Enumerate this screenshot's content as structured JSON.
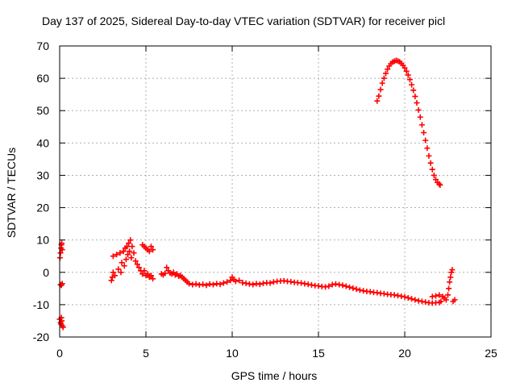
{
  "chart_data": {
    "type": "scatter",
    "title": "Day 137 of 2025, Sidereal Day-to-day VTEC variation (SDTVAR) for receiver picl",
    "xlabel": "GPS time / hours",
    "ylabel": "SDTVAR / TECUs",
    "xlim": [
      0,
      25
    ],
    "ylim": [
      -20,
      70
    ],
    "xticks": [
      "0",
      "5",
      "10",
      "15",
      "20",
      "25"
    ],
    "yticks": [
      "-20",
      "-10",
      "0",
      "10",
      "20",
      "30",
      "40",
      "50",
      "60",
      "70"
    ],
    "grid": true,
    "marker": "+",
    "color": "#ff0000",
    "series": [
      {
        "name": "SDTVAR",
        "points": [
          [
            0.02,
            4.5
          ],
          [
            0.05,
            6.0
          ],
          [
            0.08,
            7.5
          ],
          [
            0.1,
            8.5
          ],
          [
            0.12,
            9.0
          ],
          [
            0.15,
            7.0
          ],
          [
            0.05,
            -3.8
          ],
          [
            0.1,
            -4.0
          ],
          [
            0.15,
            -3.5
          ],
          [
            0.0,
            -14.5
          ],
          [
            0.05,
            -15.5
          ],
          [
            0.08,
            -16.0
          ],
          [
            0.12,
            -15.0
          ],
          [
            0.15,
            -16.5
          ],
          [
            0.2,
            -17.0
          ],
          [
            0.1,
            -14.0
          ],
          [
            3.0,
            -2.5
          ],
          [
            3.05,
            -1.5
          ],
          [
            3.1,
            0.0
          ],
          [
            3.1,
            5.0
          ],
          [
            3.2,
            -1.0
          ],
          [
            3.3,
            5.5
          ],
          [
            3.4,
            1.0
          ],
          [
            3.5,
            6.0
          ],
          [
            3.55,
            0.0
          ],
          [
            3.6,
            3.0
          ],
          [
            3.7,
            6.5
          ],
          [
            3.75,
            2.0
          ],
          [
            3.8,
            7.5
          ],
          [
            3.85,
            4.0
          ],
          [
            3.9,
            8.0
          ],
          [
            3.95,
            5.5
          ],
          [
            4.0,
            9.0
          ],
          [
            4.05,
            6.5
          ],
          [
            4.1,
            10.0
          ],
          [
            4.15,
            4.5
          ],
          [
            4.2,
            8.0
          ],
          [
            4.3,
            6.0
          ],
          [
            4.4,
            3.5
          ],
          [
            4.5,
            2.5
          ],
          [
            4.6,
            1.5
          ],
          [
            4.7,
            0.5
          ],
          [
            4.8,
            -0.5
          ],
          [
            4.9,
            0.5
          ],
          [
            5.0,
            -1.0
          ],
          [
            5.1,
            -0.5
          ],
          [
            5.2,
            -1.5
          ],
          [
            5.3,
            -1.0
          ],
          [
            5.4,
            -2.0
          ],
          [
            4.8,
            8.5
          ],
          [
            4.9,
            8.0
          ],
          [
            5.0,
            7.5
          ],
          [
            5.1,
            7.0
          ],
          [
            5.2,
            6.5
          ],
          [
            5.3,
            8.0
          ],
          [
            5.4,
            7.0
          ],
          [
            5.9,
            -0.5
          ],
          [
            6.0,
            -0.8
          ],
          [
            6.1,
            -0.3
          ],
          [
            6.2,
            1.5
          ],
          [
            6.3,
            0.5
          ],
          [
            6.4,
            -0.2
          ],
          [
            6.5,
            -0.5
          ],
          [
            6.6,
            0.0
          ],
          [
            6.7,
            -0.8
          ],
          [
            6.8,
            -0.5
          ],
          [
            6.9,
            -1.2
          ],
          [
            7.0,
            -1.0
          ],
          [
            7.1,
            -1.5
          ],
          [
            7.2,
            -2.0
          ],
          [
            7.3,
            -2.5
          ],
          [
            7.4,
            -3.0
          ],
          [
            7.5,
            -3.5
          ],
          [
            7.7,
            -3.8
          ],
          [
            7.9,
            -3.6
          ],
          [
            8.1,
            -3.9
          ],
          [
            8.3,
            -3.7
          ],
          [
            8.5,
            -4.0
          ],
          [
            8.7,
            -3.6
          ],
          [
            8.9,
            -3.8
          ],
          [
            9.1,
            -3.5
          ],
          [
            9.3,
            -3.7
          ],
          [
            9.5,
            -3.3
          ],
          [
            9.7,
            -3.0
          ],
          [
            9.9,
            -2.5
          ],
          [
            10.0,
            -1.5
          ],
          [
            10.1,
            -2.2
          ],
          [
            10.2,
            -2.8
          ],
          [
            10.4,
            -2.5
          ],
          [
            10.6,
            -3.2
          ],
          [
            10.8,
            -3.4
          ],
          [
            11.0,
            -3.6
          ],
          [
            11.2,
            -3.8
          ],
          [
            11.4,
            -3.5
          ],
          [
            11.6,
            -3.7
          ],
          [
            11.8,
            -3.4
          ],
          [
            12.0,
            -3.2
          ],
          [
            12.2,
            -3.3
          ],
          [
            12.4,
            -3.0
          ],
          [
            12.6,
            -2.8
          ],
          [
            12.8,
            -2.7
          ],
          [
            13.0,
            -2.6
          ],
          [
            13.2,
            -2.8
          ],
          [
            13.4,
            -2.9
          ],
          [
            13.6,
            -3.1
          ],
          [
            13.8,
            -3.2
          ],
          [
            14.0,
            -3.3
          ],
          [
            14.2,
            -3.5
          ],
          [
            14.4,
            -3.7
          ],
          [
            14.6,
            -3.9
          ],
          [
            14.8,
            -4.1
          ],
          [
            15.0,
            -4.2
          ],
          [
            15.2,
            -4.4
          ],
          [
            15.4,
            -4.5
          ],
          [
            15.6,
            -4.3
          ],
          [
            15.8,
            -3.8
          ],
          [
            16.0,
            -3.6
          ],
          [
            16.2,
            -3.8
          ],
          [
            16.4,
            -4.0
          ],
          [
            16.6,
            -4.3
          ],
          [
            16.8,
            -4.6
          ],
          [
            17.0,
            -4.9
          ],
          [
            17.2,
            -5.2
          ],
          [
            17.4,
            -5.5
          ],
          [
            17.6,
            -5.7
          ],
          [
            17.8,
            -5.9
          ],
          [
            18.0,
            -6.0
          ],
          [
            18.2,
            -6.2
          ],
          [
            18.4,
            -6.3
          ],
          [
            18.6,
            -6.5
          ],
          [
            18.8,
            -6.6
          ],
          [
            19.0,
            -6.8
          ],
          [
            19.2,
            -6.9
          ],
          [
            19.4,
            -7.0
          ],
          [
            19.6,
            -7.2
          ],
          [
            19.8,
            -7.4
          ],
          [
            20.0,
            -7.6
          ],
          [
            20.2,
            -7.9
          ],
          [
            20.4,
            -8.2
          ],
          [
            20.6,
            -8.5
          ],
          [
            20.8,
            -8.8
          ],
          [
            21.0,
            -9.0
          ],
          [
            21.2,
            -9.2
          ],
          [
            21.4,
            -9.4
          ],
          [
            21.6,
            -9.5
          ],
          [
            21.8,
            -9.4
          ],
          [
            22.0,
            -9.3
          ],
          [
            22.1,
            -9.0
          ],
          [
            21.6,
            -7.5
          ],
          [
            21.8,
            -7.3
          ],
          [
            22.0,
            -7.0
          ],
          [
            22.2,
            -7.5
          ],
          [
            22.3,
            -8.0
          ],
          [
            22.4,
            -8.5
          ],
          [
            22.5,
            -7.0
          ],
          [
            22.55,
            -5.0
          ],
          [
            22.6,
            -3.0
          ],
          [
            22.65,
            -1.5
          ],
          [
            22.7,
            0.0
          ],
          [
            22.75,
            0.8
          ],
          [
            22.8,
            -9.0
          ],
          [
            22.9,
            -8.5
          ],
          [
            18.4,
            53.0
          ],
          [
            18.5,
            54.5
          ],
          [
            18.6,
            56.5
          ],
          [
            18.7,
            58.5
          ],
          [
            18.8,
            60.0
          ],
          [
            18.9,
            61.5
          ],
          [
            19.0,
            62.8
          ],
          [
            19.1,
            63.8
          ],
          [
            19.2,
            64.5
          ],
          [
            19.3,
            65.0
          ],
          [
            19.4,
            65.3
          ],
          [
            19.5,
            65.5
          ],
          [
            19.6,
            65.4
          ],
          [
            19.7,
            65.1
          ],
          [
            19.8,
            64.6
          ],
          [
            19.9,
            64.0
          ],
          [
            20.0,
            63.2
          ],
          [
            20.1,
            62.2
          ],
          [
            20.2,
            61.0
          ],
          [
            20.3,
            59.6
          ],
          [
            20.4,
            58.0
          ],
          [
            20.5,
            56.3
          ],
          [
            20.6,
            54.4
          ],
          [
            20.7,
            52.4
          ],
          [
            20.8,
            50.2
          ],
          [
            20.9,
            48.0
          ],
          [
            21.0,
            45.6
          ],
          [
            21.1,
            43.2
          ],
          [
            21.2,
            40.8
          ],
          [
            21.3,
            38.4
          ],
          [
            21.4,
            36.0
          ],
          [
            21.5,
            33.8
          ],
          [
            21.6,
            31.8
          ],
          [
            21.7,
            30.0
          ],
          [
            21.8,
            28.7
          ],
          [
            21.9,
            27.8
          ],
          [
            22.0,
            27.3
          ],
          [
            22.05,
            27.0
          ]
        ]
      }
    ]
  }
}
